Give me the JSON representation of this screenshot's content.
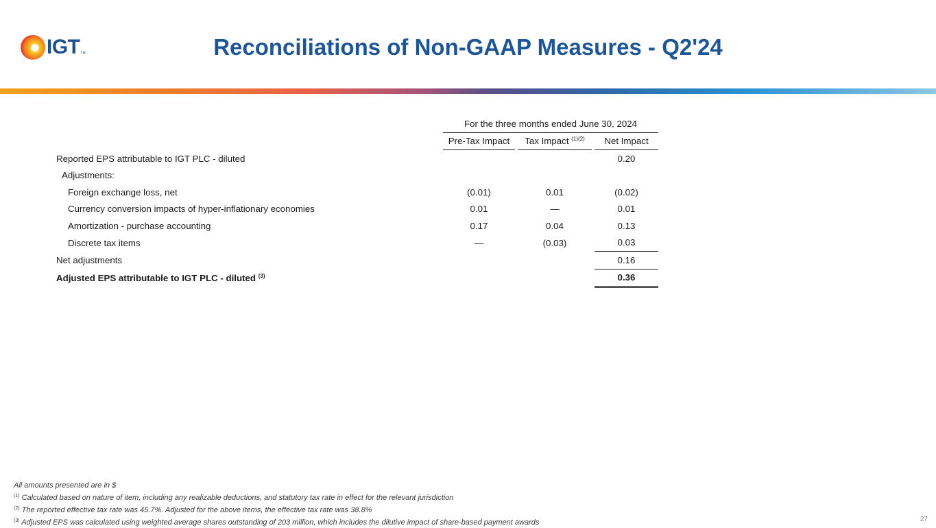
{
  "logo": {
    "text": "IGT",
    "tm": "TM"
  },
  "title": "Reconciliations of Non-GAAP Measures - Q2'24",
  "table": {
    "period_header": "For the three months ended June 30, 2024",
    "columns": {
      "pre_tax": "Pre-Tax Impact",
      "tax": "Tax Impact",
      "tax_sup": "(1)(2)",
      "net": "Net Impact"
    },
    "rows": [
      {
        "label": "Reported EPS attributable to IGT PLC - diluted",
        "pre": "",
        "tax": "",
        "net": "0.20"
      },
      {
        "label": "Adjustments:",
        "pre": "",
        "tax": "",
        "net": ""
      },
      {
        "label": "Foreign exchange loss, net",
        "pre": "(0.01)",
        "tax": "0.01",
        "net": "(0.02)"
      },
      {
        "label": "Currency conversion impacts of hyper-inflationary economies",
        "pre": "0.01",
        "tax": "—",
        "net": "0.01"
      },
      {
        "label": "Amortization - purchase accounting",
        "pre": "0.17",
        "tax": "0.04",
        "net": "0.13"
      },
      {
        "label": "Discrete tax items",
        "pre": "—",
        "tax": "(0.03)",
        "net": "0.03"
      },
      {
        "label": "Net adjustments",
        "pre": "",
        "tax": "",
        "net": "0.16"
      },
      {
        "label": "Adjusted EPS  attributable to IGT PLC - diluted",
        "sup": "(3)",
        "pre": "",
        "tax": "",
        "net": "0.36"
      }
    ]
  },
  "footnotes": {
    "intro": "All amounts presented are in $",
    "n1_mark": "(1)",
    "n1": " Calculated based on nature of item, including any realizable deductions, and statutory tax rate in effect for the relevant jurisdiction",
    "n2_mark": "(2)",
    "n2": " The reported effective tax rate was 45.7%. Adjusted for the above items, the effective tax rate was 38.8%",
    "n3_mark": "(3)",
    "n3": " Adjusted EPS was calculated using weighted average shares outstanding of 203 million, which includes the dilutive impact of share-based payment awards"
  },
  "page_number": "27"
}
